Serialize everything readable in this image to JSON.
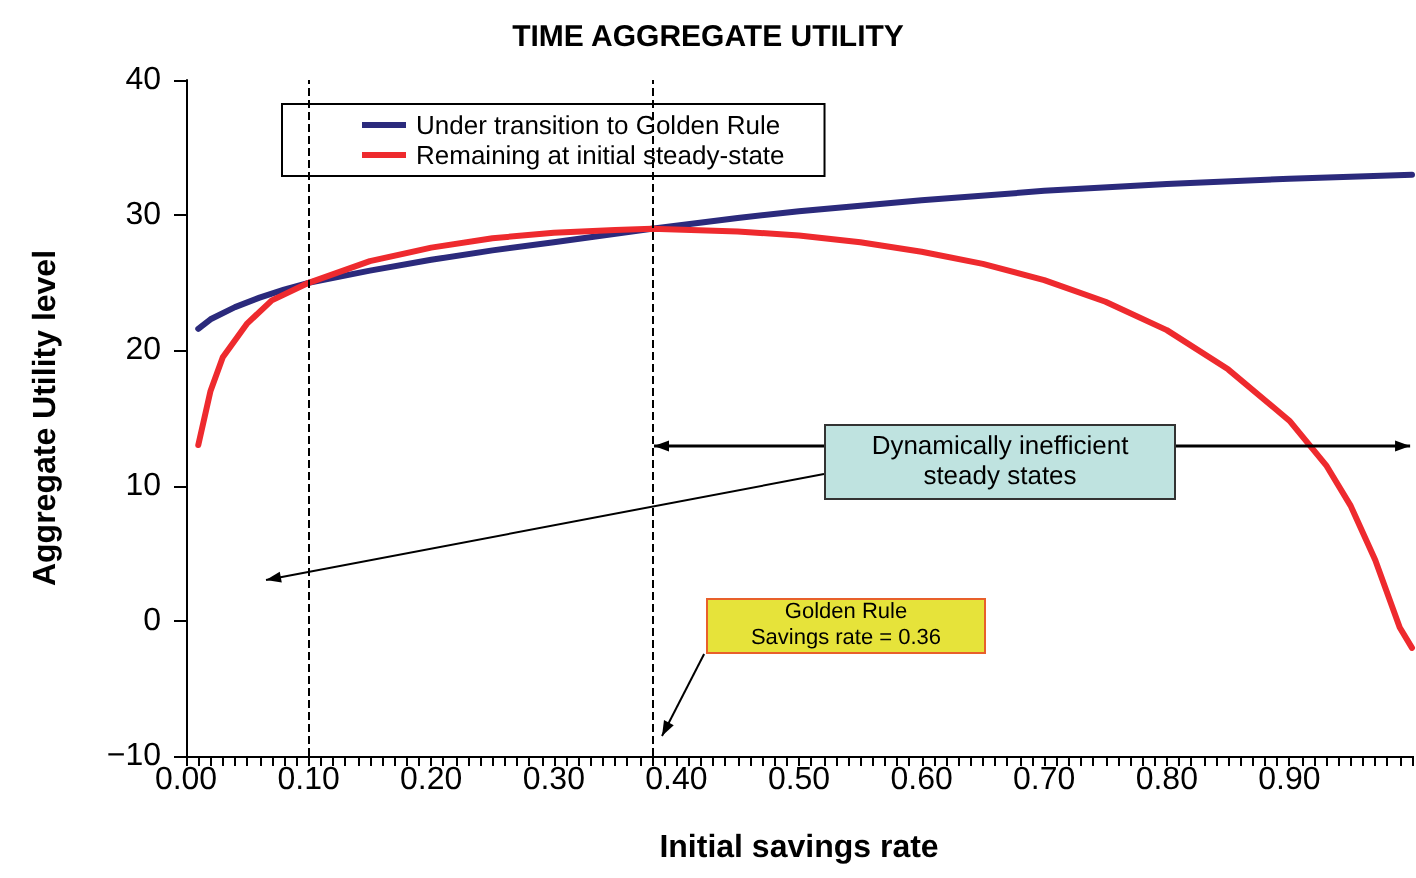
{
  "chart_data": {
    "type": "line",
    "title": "TIME AGGREGATE UTILITY",
    "xlabel": "Initial savings rate",
    "ylabel": "Aggregate Utility level",
    "series": [
      {
        "name": "Under transition to Golden Rule",
        "color": "#2b2a7c",
        "x": [
          0.01,
          0.02,
          0.04,
          0.06,
          0.08,
          0.1,
          0.15,
          0.2,
          0.25,
          0.3,
          0.38,
          0.45,
          0.5,
          0.6,
          0.7,
          0.8,
          0.9,
          1.0
        ],
        "values": [
          21.6,
          22.3,
          23.2,
          23.9,
          24.5,
          25.0,
          25.9,
          26.7,
          27.4,
          28.0,
          29.0,
          29.8,
          30.3,
          31.1,
          31.8,
          32.3,
          32.7,
          33.0
        ]
      },
      {
        "name": "Remaining at initial steady-state",
        "color": "#ee2a2e",
        "x": [
          0.01,
          0.02,
          0.03,
          0.05,
          0.07,
          0.1,
          0.15,
          0.2,
          0.25,
          0.3,
          0.35,
          0.38,
          0.45,
          0.5,
          0.55,
          0.6,
          0.65,
          0.7,
          0.75,
          0.8,
          0.85,
          0.9,
          0.93,
          0.95,
          0.97,
          0.99,
          1.0
        ],
        "values": [
          13.0,
          17.0,
          19.5,
          22.0,
          23.7,
          25.0,
          26.6,
          27.6,
          28.3,
          28.7,
          28.9,
          29.0,
          28.8,
          28.5,
          28.0,
          27.3,
          26.4,
          25.2,
          23.6,
          21.5,
          18.6,
          14.8,
          11.5,
          8.5,
          4.5,
          -0.5,
          -2.0
        ]
      }
    ],
    "xlim": [
      0,
      1.0
    ],
    "xticks": [
      {
        "value": 0,
        "label": "0.00"
      },
      {
        "value": 0.1,
        "label": "0.10"
      },
      {
        "value": 0.2,
        "label": "0.20"
      },
      {
        "value": 0.3,
        "label": "0.30"
      },
      {
        "value": 0.4,
        "label": "0.40"
      },
      {
        "value": 0.5,
        "label": "0.50"
      },
      {
        "value": 0.6,
        "label": "0.60"
      },
      {
        "value": 0.7,
        "label": "0.70"
      },
      {
        "value": 0.8,
        "label": "0.80"
      },
      {
        "value": 0.9,
        "label": "0.90"
      }
    ],
    "ylim": [
      -10,
      40
    ],
    "yticks": [
      -10,
      0,
      10,
      20,
      30,
      40
    ],
    "ref_lines": [
      {
        "axis": "x",
        "value": 0.1,
        "color": "#000000",
        "line_style": "dashed"
      },
      {
        "axis": "x",
        "value": 0.38,
        "color": "#000000",
        "line_style": "dashed"
      }
    ],
    "annotations": [
      "Dynamically inefficient\nsteady states",
      "Golden Rule\nSavings rate = 0.36"
    ],
    "grid": false,
    "legend": "top left",
    "marker": "none",
    "line_style": "solid"
  }
}
